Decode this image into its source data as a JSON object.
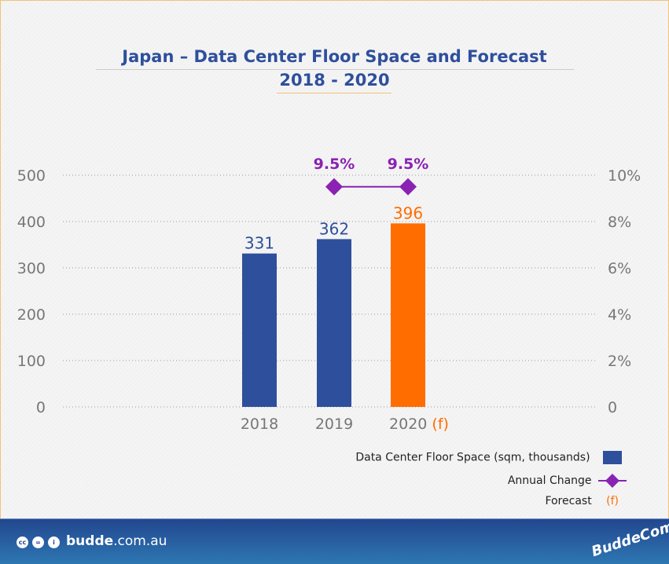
{
  "chart_data": {
    "type": "bar",
    "title": "Japan – Data Center Floor Space and Forecast",
    "subtitle": "2018 - 2020",
    "categories": [
      "2018",
      "2019",
      "2020"
    ],
    "category_suffix": [
      "",
      "",
      "(f)"
    ],
    "series": [
      {
        "name": "Data Center Floor Space (sqm, thousands)",
        "type": "bar",
        "axis": "left",
        "values": [
          331,
          362,
          396
        ],
        "colors": [
          "#2e4f9c",
          "#2e4f9c",
          "#ff6d00"
        ]
      },
      {
        "name": "Annual Change",
        "type": "line",
        "axis": "right",
        "values": [
          null,
          9.5,
          9.5
        ],
        "labels": [
          "",
          "9.5%",
          "9.5%"
        ],
        "color": "#8a22b3"
      }
    ],
    "left_axis": {
      "ylim": [
        0,
        500
      ],
      "ticks": [
        "0",
        "100",
        "200",
        "300",
        "400",
        "500"
      ]
    },
    "right_axis": {
      "ylim": [
        0,
        10
      ],
      "ticks": [
        "0",
        "2%",
        "4%",
        "6%",
        "8%",
        "10%"
      ]
    },
    "grid": true,
    "legend": {
      "placement": "bottom-right",
      "items": [
        "Data Center Floor Space (sqm, thousands)",
        "Annual Change",
        "Forecast"
      ],
      "forecast_marker": "(f)"
    }
  },
  "footer": {
    "site_bold": "budde",
    "site_rest": ".com.au",
    "logo_text": "BuddeComm",
    "icons": [
      "cc-icon",
      "nd-icon",
      "by-icon"
    ]
  }
}
